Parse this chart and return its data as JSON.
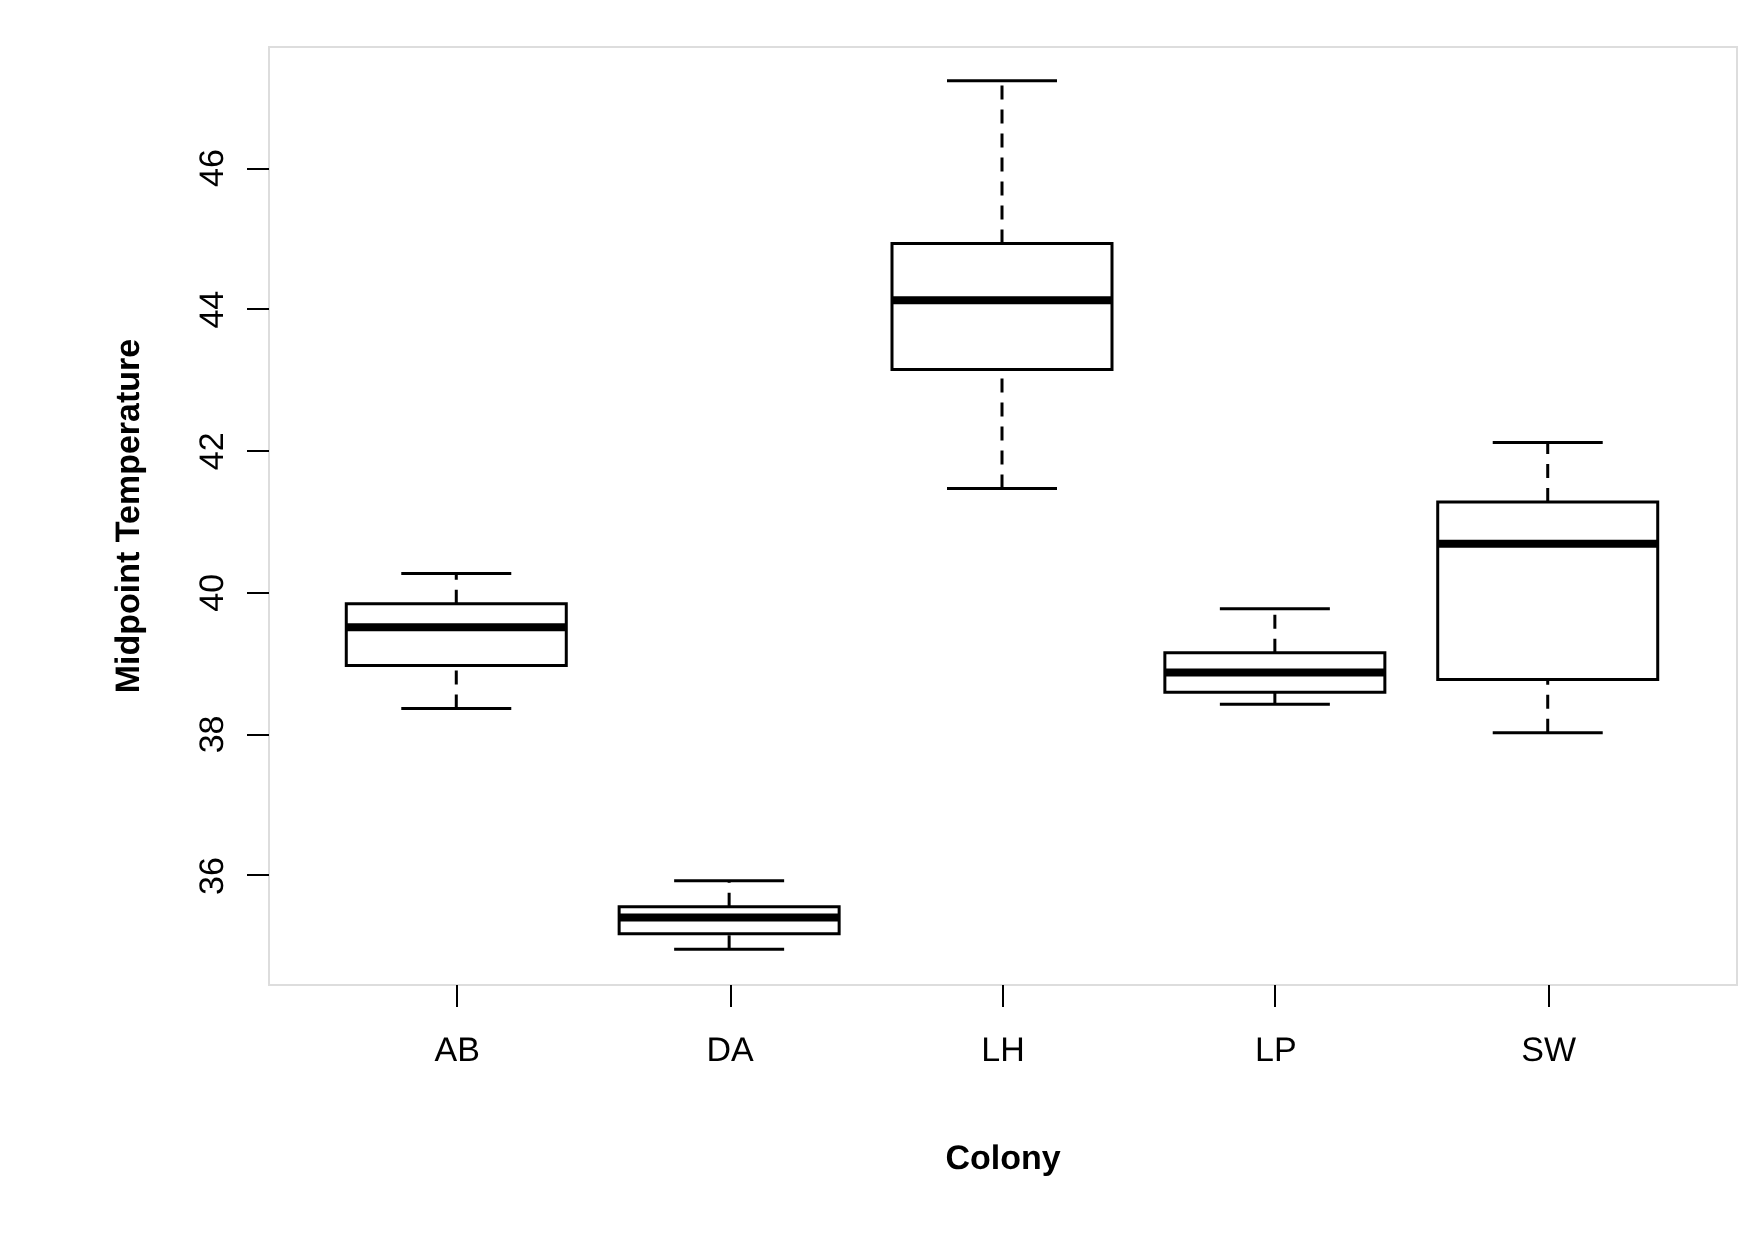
{
  "chart_data": {
    "type": "box",
    "xlabel": "Colony",
    "ylabel": "Midpoint Temperature",
    "categories": [
      "AB",
      "DA",
      "LH",
      "LP",
      "SW"
    ],
    "boxes": [
      {
        "low": 38.35,
        "q1": 38.96,
        "median": 39.5,
        "q3": 39.83,
        "high": 40.26
      },
      {
        "low": 34.95,
        "q1": 35.17,
        "median": 35.4,
        "q3": 35.55,
        "high": 35.92
      },
      {
        "low": 41.46,
        "q1": 43.14,
        "median": 44.12,
        "q3": 44.92,
        "high": 47.22
      },
      {
        "low": 38.41,
        "q1": 38.58,
        "median": 38.86,
        "q3": 39.14,
        "high": 39.76
      },
      {
        "low": 38.01,
        "q1": 38.76,
        "median": 40.68,
        "q3": 41.27,
        "high": 42.11
      }
    ],
    "color": "#000000",
    "ylim": [
      34.46,
      47.71
    ],
    "yticks": [
      36,
      38,
      40,
      42,
      44,
      46
    ],
    "grid": false
  }
}
